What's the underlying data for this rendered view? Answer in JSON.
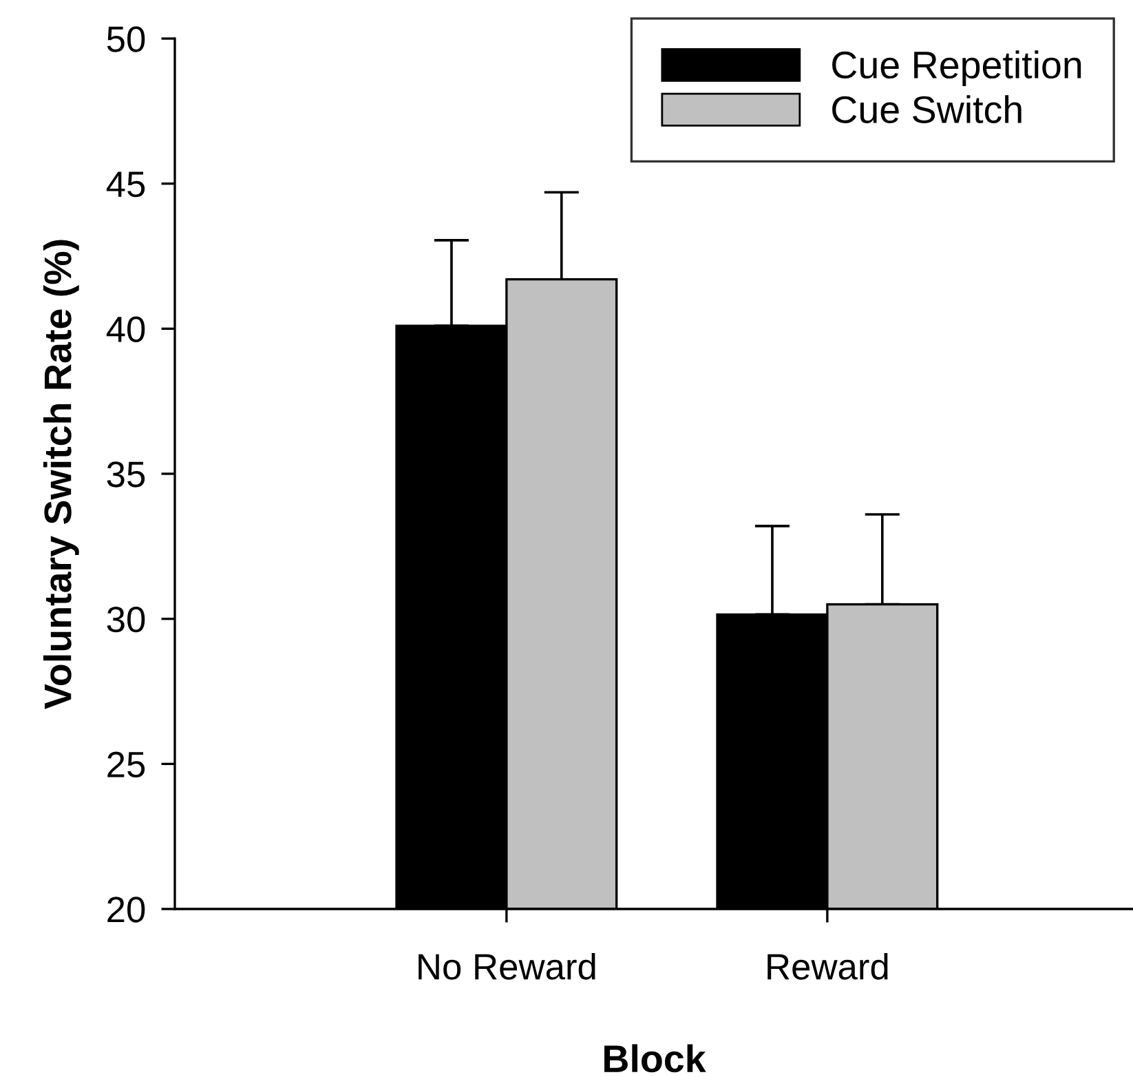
{
  "chart_data": {
    "type": "bar",
    "xlabel": "Block",
    "ylabel": "Voluntary Switch Rate (%)",
    "categories": [
      "No Reward",
      "Reward"
    ],
    "series": [
      {
        "name": "Cue Repetition",
        "color": "#000000",
        "values": [
          40.1,
          30.15
        ],
        "errors": [
          [
            40.1,
            43.05
          ],
          [
            30.15,
            33.2
          ]
        ]
      },
      {
        "name": "Cue Switch",
        "color": "#c0c0c0",
        "values": [
          41.7,
          30.5
        ],
        "errors": [
          [
            41.7,
            44.7
          ],
          [
            30.5,
            33.6
          ]
        ]
      }
    ],
    "ylim": [
      20,
      50
    ],
    "yticks": [
      20,
      25,
      30,
      35,
      40,
      45,
      50
    ],
    "grid": false,
    "legend": "top right"
  }
}
